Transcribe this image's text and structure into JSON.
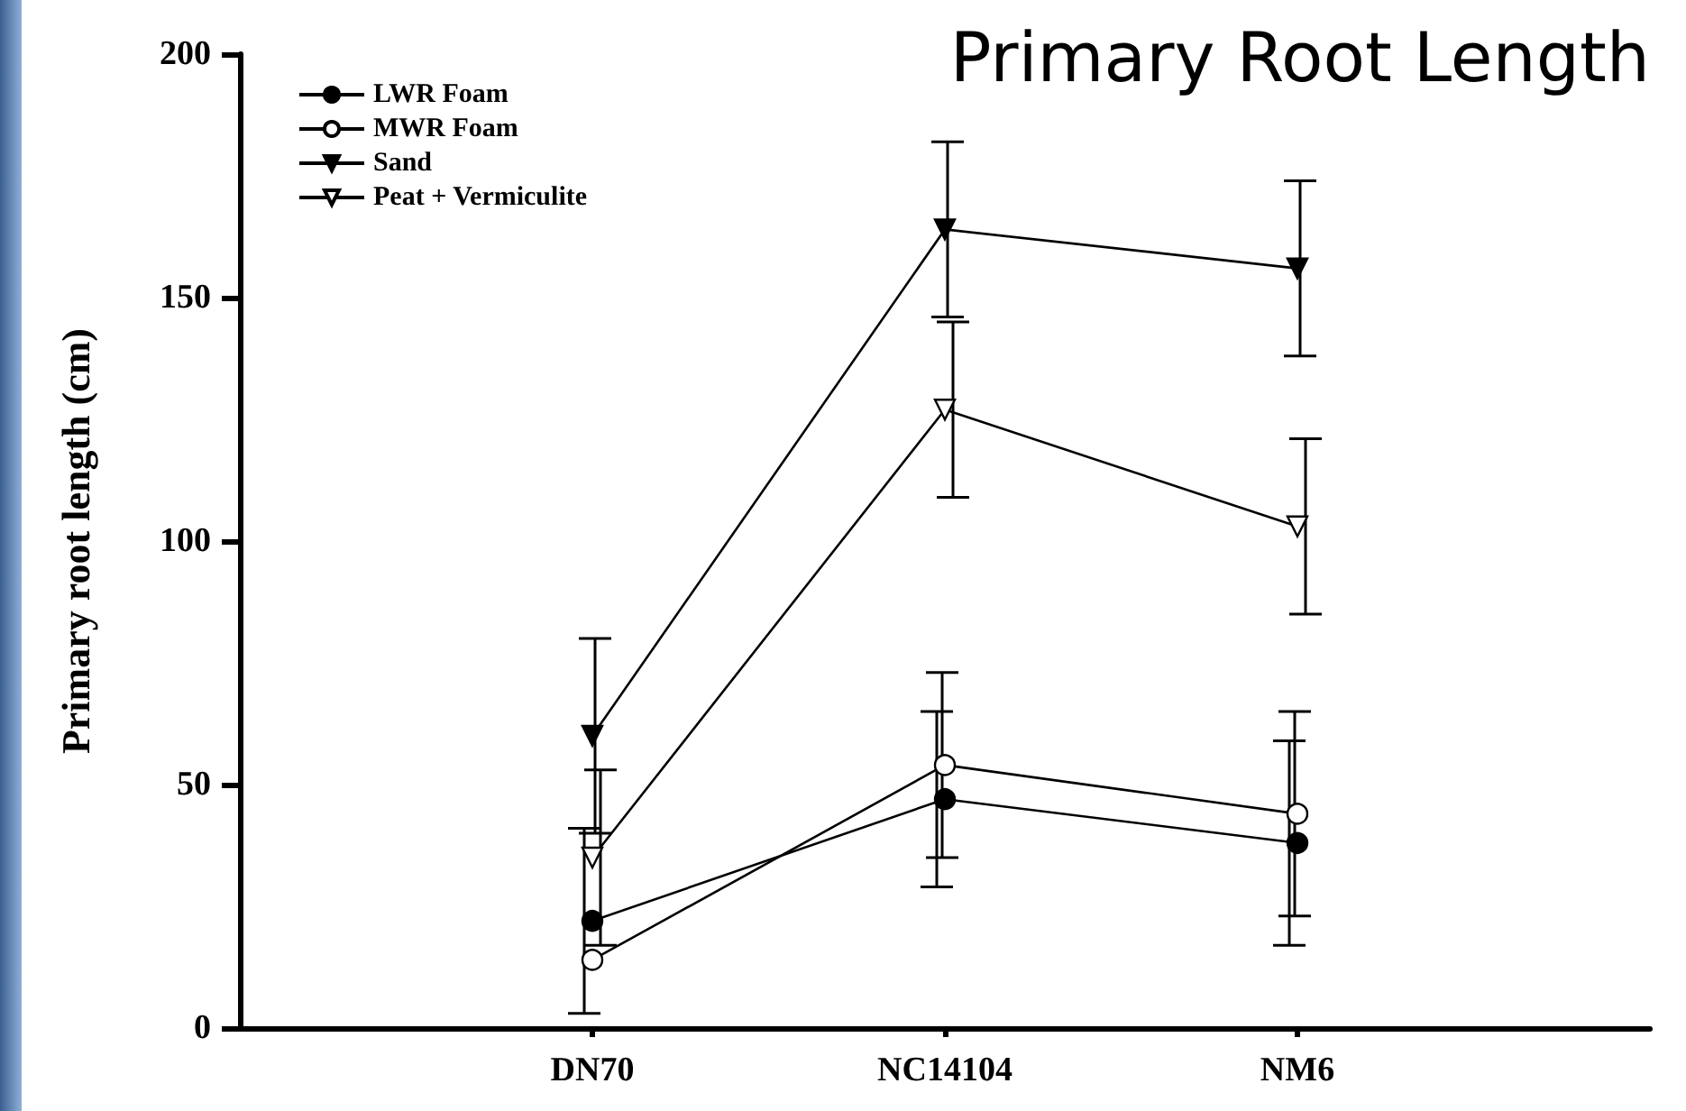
{
  "chart_data": {
    "type": "line",
    "title": "Primary Root Length",
    "ylabel": "Primary root length (cm)",
    "categories": [
      null,
      "DN70",
      "NC14104",
      "NM6",
      null
    ],
    "series": [
      {
        "name": "LWR Foam",
        "color": "#000000",
        "marker": "circle",
        "values": [
          null,
          22,
          47,
          38,
          null
        ],
        "errors": [
          null,
          19,
          18,
          21,
          null
        ]
      },
      {
        "name": "MWR Foam",
        "color": "#ffffff",
        "marker": "circle",
        "values": [
          null,
          14,
          54,
          44,
          null
        ],
        "errors": [
          null,
          null,
          19,
          21,
          null
        ]
      },
      {
        "name": "Sand",
        "color": "#000000",
        "marker": "triangle",
        "values": [
          null,
          60,
          164,
          156,
          null
        ],
        "errors": [
          null,
          20,
          18,
          18,
          null
        ]
      },
      {
        "name": "Peat + Vermiculite",
        "color": "#ffffff",
        "marker": "triangle",
        "values": [
          null,
          35,
          127,
          103,
          null
        ],
        "errors": [
          null,
          18,
          18,
          18,
          null
        ]
      }
    ],
    "ylim": [
      0,
      200
    ],
    "yticks": [
      0,
      50,
      100,
      150,
      200
    ],
    "grid": false,
    "legend": "top left"
  }
}
